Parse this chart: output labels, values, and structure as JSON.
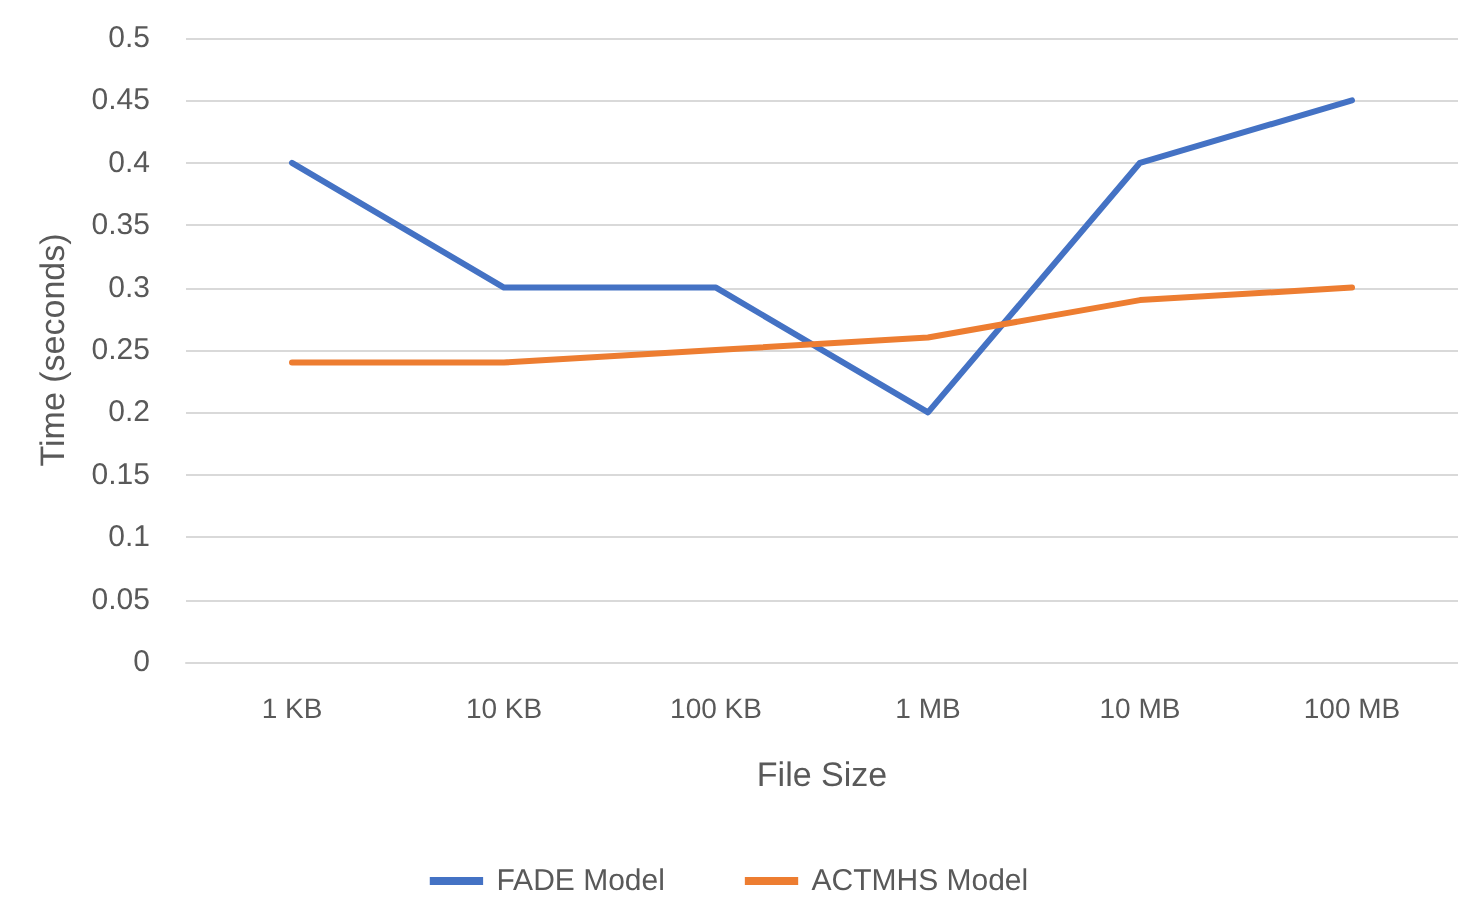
{
  "chart_data": {
    "type": "line",
    "xlabel": "File Size",
    "ylabel": "Time (seconds)",
    "categories": [
      "1 KB",
      "10 KB",
      "100 KB",
      "1 MB",
      "10 MB",
      "100 MB"
    ],
    "series": [
      {
        "name": "FADE Model",
        "color": "#4472c4",
        "values": [
          0.4,
          0.3,
          0.3,
          0.2,
          0.4,
          0.45
        ]
      },
      {
        "name": "ACTMHS Model",
        "color": "#ed7d31",
        "values": [
          0.24,
          0.24,
          0.25,
          0.26,
          0.29,
          0.3
        ]
      }
    ],
    "ylim": [
      0,
      0.5
    ],
    "yticks": [
      0,
      0.05,
      0.1,
      0.15,
      0.2,
      0.25,
      0.3,
      0.35,
      0.4,
      0.45,
      0.5
    ],
    "grid": "y",
    "legend": "bottom",
    "marker": "none",
    "line_style": "solid"
  }
}
